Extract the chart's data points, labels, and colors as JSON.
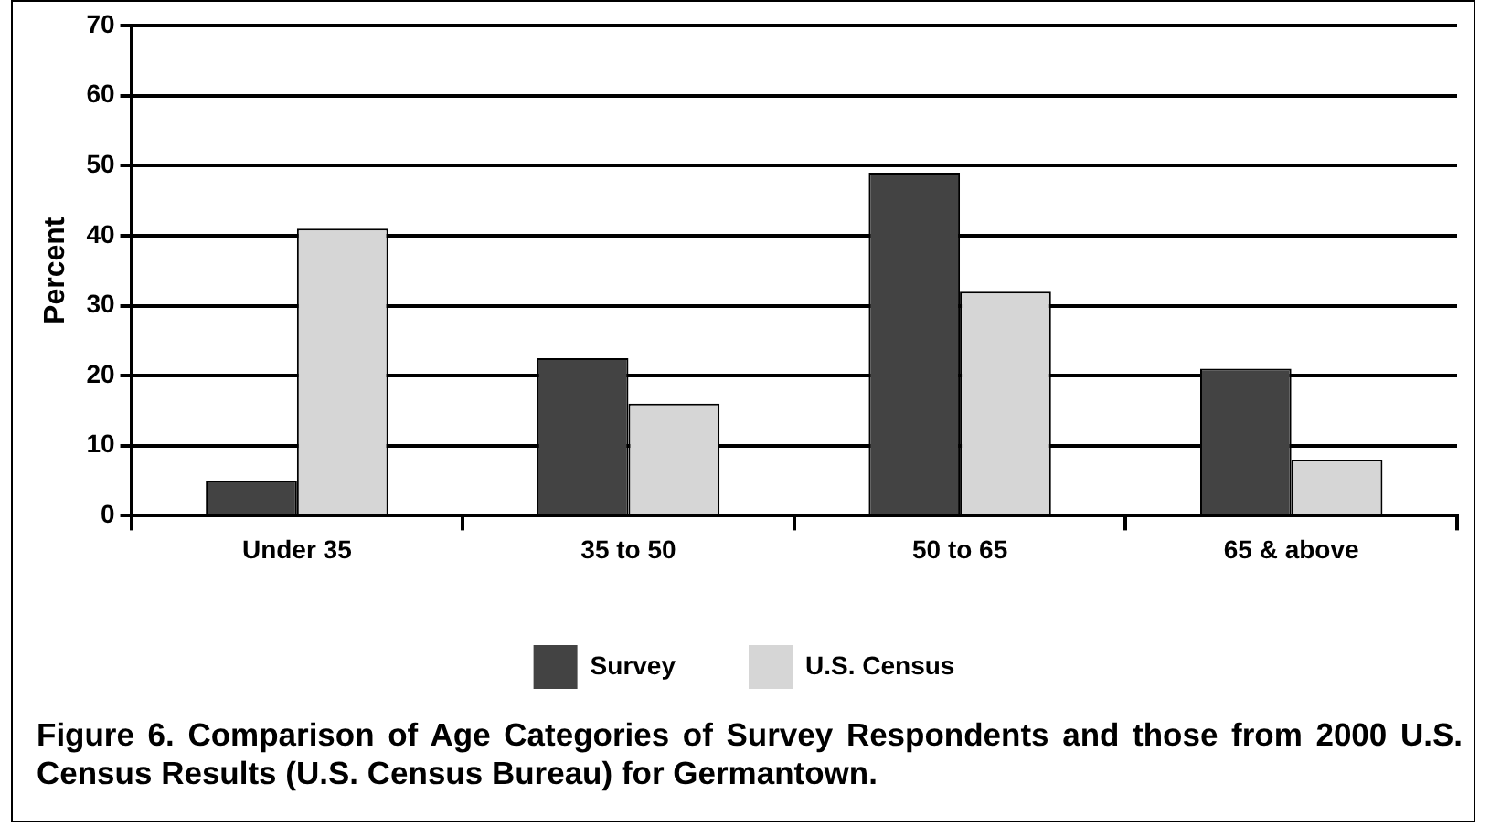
{
  "chart_data": {
    "type": "bar",
    "ylabel": "Percent",
    "categories": [
      "Under 35",
      "35 to 50",
      "50 to 65",
      "65 & above"
    ],
    "series": [
      {
        "name": "Survey",
        "color": "#434343",
        "values": [
          5,
          22.5,
          49,
          21
        ]
      },
      {
        "name": "U.S. Census",
        "color": "#d6d6d6",
        "values": [
          41,
          16,
          32,
          8
        ]
      }
    ],
    "ylim": [
      0,
      70
    ],
    "yticks": [
      0,
      10,
      20,
      30,
      40,
      50,
      60,
      70
    ],
    "grid": "y",
    "legend": "bottom",
    "annotations": [
      "Figure 6. Comparison of Age Categories of Survey Respondents and those from 2000 U.S. Census Results (U.S. Census Bureau) for Germantown."
    ]
  }
}
